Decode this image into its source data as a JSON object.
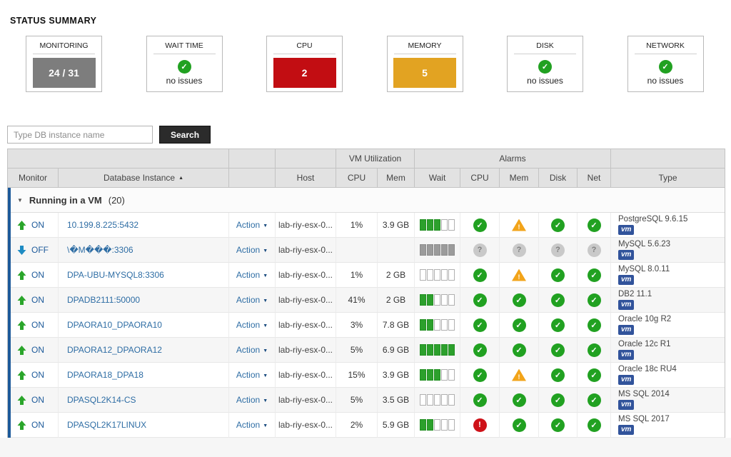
{
  "status_summary": {
    "title": "STATUS SUMMARY"
  },
  "summary_cards": [
    {
      "id": "monitoring",
      "label": "MONITORING",
      "kind": "count",
      "box": "gray",
      "value": "24 / 31"
    },
    {
      "id": "wait-time",
      "label": "WAIT TIME",
      "kind": "ok",
      "status_text": "no issues"
    },
    {
      "id": "cpu",
      "label": "CPU",
      "kind": "count",
      "box": "red",
      "value": "2"
    },
    {
      "id": "memory",
      "label": "MEMORY",
      "kind": "count",
      "box": "amber",
      "value": "5"
    },
    {
      "id": "disk",
      "label": "DISK",
      "kind": "ok",
      "status_text": "no issues"
    },
    {
      "id": "network",
      "label": "NETWORK",
      "kind": "ok",
      "status_text": "no issues"
    }
  ],
  "search": {
    "placeholder": "Type DB instance name",
    "button_label": "Search"
  },
  "table": {
    "group_headers": {
      "vm_utilization": "VM Utilization",
      "alarms": "Alarms"
    },
    "columns": {
      "monitor": "Monitor",
      "database_instance": "Database Instance",
      "action": "",
      "host": "Host",
      "cpu": "CPU",
      "mem": "Mem",
      "wait": "Wait",
      "alarm_cpu": "CPU",
      "alarm_mem": "Mem",
      "alarm_disk": "Disk",
      "alarm_net": "Net",
      "type": "Type"
    },
    "sort": {
      "column": "Database Instance",
      "direction": "ascending",
      "indicator": "▲"
    },
    "group_row": {
      "label": "Running in a VM",
      "count": "(20)",
      "collapse_indicator": "▼"
    },
    "action_label": "Action",
    "rows": [
      {
        "monitor": "ON",
        "direction": "up",
        "instance": "10.199.8.225:5432",
        "host": "lab-riy-esx-0...",
        "cpu": "1%",
        "mem": "3.9 GB",
        "wait_filled": 3,
        "wait_total": 5,
        "wait_style": "green",
        "alarms": {
          "cpu": "ok",
          "mem": "warn",
          "disk": "ok",
          "net": "ok"
        },
        "type": "PostgreSQL 9.6.15",
        "badge": "vm"
      },
      {
        "monitor": "OFF",
        "direction": "down",
        "instance": "\\�M���:3306",
        "host": "lab-riy-esx-0...",
        "cpu": "",
        "mem": "",
        "wait_filled": 5,
        "wait_total": 5,
        "wait_style": "gray",
        "alarms": {
          "cpu": "unknown",
          "mem": "unknown",
          "disk": "unknown",
          "net": "unknown"
        },
        "type": "MySQL 5.6.23",
        "badge": "vm"
      },
      {
        "monitor": "ON",
        "direction": "up",
        "instance": "DPA-UBU-MYSQL8:3306",
        "host": "lab-riy-esx-0...",
        "cpu": "1%",
        "mem": "2 GB",
        "wait_filled": 0,
        "wait_total": 5,
        "wait_style": "green",
        "alarms": {
          "cpu": "ok",
          "mem": "warn",
          "disk": "ok",
          "net": "ok"
        },
        "type": "MySQL 8.0.11",
        "badge": "vm"
      },
      {
        "monitor": "ON",
        "direction": "up",
        "instance": "DPADB2111:50000",
        "host": "lab-riy-esx-0...",
        "cpu": "41%",
        "mem": "2 GB",
        "wait_filled": 2,
        "wait_total": 5,
        "wait_style": "green",
        "alarms": {
          "cpu": "ok",
          "mem": "ok",
          "disk": "ok",
          "net": "ok"
        },
        "type": "DB2 11.1",
        "badge": "vm"
      },
      {
        "monitor": "ON",
        "direction": "up",
        "instance": "DPAORA10_DPAORA10",
        "host": "lab-riy-esx-0...",
        "cpu": "3%",
        "mem": "7.8 GB",
        "wait_filled": 2,
        "wait_total": 5,
        "wait_style": "green",
        "alarms": {
          "cpu": "ok",
          "mem": "ok",
          "disk": "ok",
          "net": "ok"
        },
        "type": "Oracle 10g R2",
        "badge": "vm"
      },
      {
        "monitor": "ON",
        "direction": "up",
        "instance": "DPAORA12_DPAORA12",
        "host": "lab-riy-esx-0...",
        "cpu": "5%",
        "mem": "6.9 GB",
        "wait_filled": 5,
        "wait_total": 5,
        "wait_style": "green",
        "alarms": {
          "cpu": "ok",
          "mem": "ok",
          "disk": "ok",
          "net": "ok"
        },
        "type": "Oracle 12c R1",
        "badge": "vm"
      },
      {
        "monitor": "ON",
        "direction": "up",
        "instance": "DPAORA18_DPA18",
        "host": "lab-riy-esx-0...",
        "cpu": "15%",
        "mem": "3.9 GB",
        "wait_filled": 3,
        "wait_total": 5,
        "wait_style": "green",
        "alarms": {
          "cpu": "ok",
          "mem": "warn",
          "disk": "ok",
          "net": "ok"
        },
        "type": "Oracle 18c RU4",
        "badge": "vm"
      },
      {
        "monitor": "ON",
        "direction": "up",
        "instance": "DPASQL2K14-CS",
        "host": "lab-riy-esx-0...",
        "cpu": "5%",
        "mem": "3.5 GB",
        "wait_filled": 0,
        "wait_total": 5,
        "wait_style": "green",
        "alarms": {
          "cpu": "ok",
          "mem": "ok",
          "disk": "ok",
          "net": "ok"
        },
        "type": "MS SQL 2014",
        "badge": "vm"
      },
      {
        "monitor": "ON",
        "direction": "up",
        "instance": "DPASQL2K17LINUX",
        "host": "lab-riy-esx-0...",
        "cpu": "2%",
        "mem": "5.9 GB",
        "wait_filled": 2,
        "wait_total": 5,
        "wait_style": "green",
        "alarms": {
          "cpu": "crit",
          "mem": "ok",
          "disk": "ok",
          "net": "ok"
        },
        "type": "MS SQL 2017",
        "badge": "vm"
      }
    ]
  },
  "colors": {
    "accent_blue": "#1d5a9a",
    "ok_green": "#21a121",
    "warn_amber": "#f2a41a",
    "crit_red": "#ce1118",
    "unknown_gray": "#c9c9c9",
    "monitoring_gray": "#7d7d7d",
    "cpu_card_red": "#c20d12",
    "memory_card_amber": "#e2a322",
    "link_blue": "#2e6da4",
    "vm_badge_navy": "#31539b",
    "wait_bar_green": "#2ca02c"
  }
}
